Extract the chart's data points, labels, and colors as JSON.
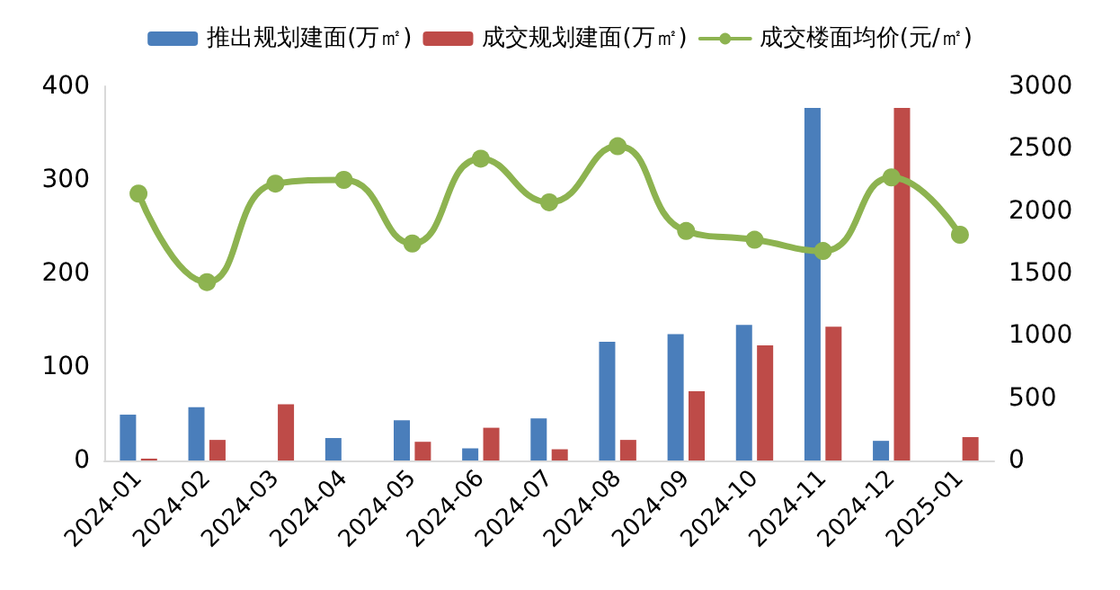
{
  "chart_data": {
    "type": "bar",
    "categories": [
      "2024-01",
      "2024-02",
      "2024-03",
      "2024-04",
      "2024-05",
      "2024-06",
      "2024-07",
      "2024-08",
      "2024-09",
      "2024-10",
      "2024-11",
      "2024-12",
      "2025-01"
    ],
    "series": [
      {
        "name": "推出规划建面(万㎡)",
        "color": "#4a7ebb",
        "values": [
          49,
          57,
          null,
          24,
          43,
          13,
          45,
          127,
          135,
          145,
          377,
          21,
          null
        ]
      },
      {
        "name": "成交规划建面(万㎡)",
        "color": "#be4b48",
        "values": [
          2,
          22,
          60,
          null,
          20,
          35,
          12,
          22,
          74,
          123,
          143,
          377,
          25
        ]
      },
      {
        "name": "成交楼面均价(元/㎡)",
        "type": "line",
        "axis": "y2",
        "color": "#8db350",
        "values": [
          2140,
          1430,
          2220,
          2250,
          1740,
          2420,
          2070,
          2520,
          1840,
          1770,
          1680,
          2270,
          1810
        ]
      }
    ],
    "ylim": [
      0,
      400
    ],
    "yticks": [
      0,
      100,
      200,
      300,
      400
    ],
    "y2lim": [
      0,
      3000
    ],
    "y2ticks": [
      0,
      500,
      1000,
      1500,
      2000,
      2500,
      3000
    ],
    "grid": false,
    "legend": "top",
    "marker": "circle",
    "line_style": "solid"
  }
}
